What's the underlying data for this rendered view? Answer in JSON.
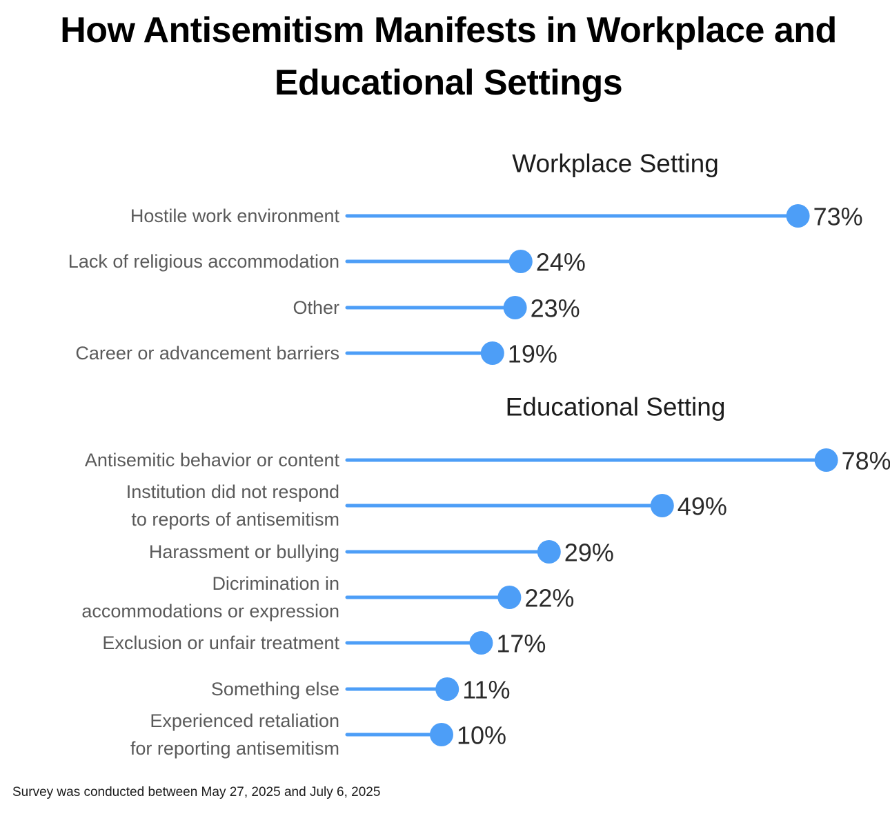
{
  "title": "How Antisemitism Manifests in Workplace and Educational Settings",
  "footer": "Survey was conducted between May 27, 2025 and July 6, 2025",
  "colors": {
    "accent": "#4d9ef7",
    "label": "#5a5a5a",
    "value": "#2b2b2b",
    "heading": "#1c1c1c"
  },
  "chart_data": [
    {
      "type": "lollipop",
      "title": "Workplace Setting",
      "categories": [
        "Hostile work environment",
        "Lack of religious accommodation",
        "Other",
        "Career or advancement barriers"
      ],
      "values": [
        73,
        24,
        23,
        19
      ],
      "value_labels": [
        "73%",
        "24%",
        "23%",
        "19%"
      ],
      "unit": "%"
    },
    {
      "type": "lollipop",
      "title": "Educational Setting",
      "categories": [
        "Antisemitic behavior or content",
        "Institution did not respond to reports of antisemitism",
        "Harassment or bullying",
        "Dicrimination in accommodations or expression",
        "Exclusion or unfair treatment",
        "Something else",
        "Experienced retaliation for reporting antisemitism"
      ],
      "values": [
        78,
        49,
        29,
        22,
        17,
        11,
        10
      ],
      "value_labels": [
        "78%",
        "49%",
        "29%",
        "22%",
        "17%",
        "11%",
        "10%"
      ],
      "unit": "%"
    }
  ]
}
